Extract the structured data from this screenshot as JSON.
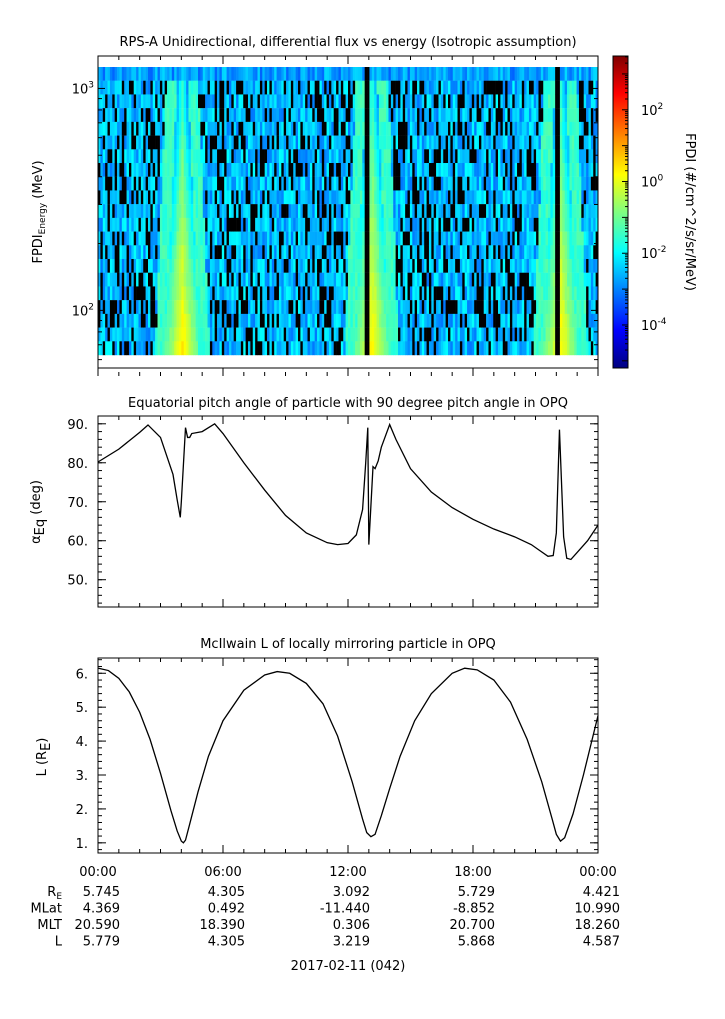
{
  "colors": {
    "colormap": [
      "#00007f",
      "#0000ff",
      "#0080ff",
      "#00ffff",
      "#80ff80",
      "#ffff00",
      "#ff8000",
      "#ff0000",
      "#7f0000"
    ],
    "curve": "#000000",
    "background": "#ffffff"
  },
  "chart_data": [
    {
      "type": "heatmap",
      "title": "RPS-A Unidirectional, differential flux vs energy (Isotropic assumption)",
      "ylabel_main": "FPDI",
      "ylabel_sub": "Energy",
      "ylabel_unit": " (MeV)",
      "yscale": "log",
      "ylim": [
        55,
        1400
      ],
      "yticks": [
        {
          "value": 100,
          "base": "10",
          "exp": "2"
        },
        {
          "value": 1000,
          "base": "10",
          "exp": "3"
        }
      ],
      "xlim_hours": [
        0,
        24
      ],
      "colorbar": {
        "label": "FPDI (#/cm^2/s/sr/MeV)",
        "scale": "log",
        "range_log": [
          -5.2,
          3.5
        ],
        "ticks": [
          {
            "value_log": -4,
            "base": "10",
            "exp": "-4"
          },
          {
            "value_log": -2,
            "base": "10",
            "exp": "-2"
          },
          {
            "value_log": 0,
            "base": "10",
            "exp": "0"
          },
          {
            "value_log": 2,
            "base": "10",
            "exp": "2"
          }
        ]
      },
      "belt_crossings_hours": [
        4.05,
        13.15,
        22.2
      ],
      "data_gaps_hours": [
        12.9,
        22.05
      ]
    },
    {
      "type": "line",
      "title": "Equatorial pitch angle of particle with 90 degree pitch angle in OPQ",
      "ylabel_main": "α",
      "ylabel_sub": "Eq",
      "ylabel_unit": " (deg)",
      "ylim": [
        43,
        92
      ],
      "yticks": [
        "50.",
        "60.",
        "70.",
        "80.",
        "90."
      ],
      "ytick_values": [
        50,
        60,
        70,
        80,
        90
      ],
      "x_hours": [
        0,
        1,
        2,
        2.4,
        3,
        3.6,
        3.8,
        3.95,
        4.0,
        4.2,
        4.3,
        4.4,
        4.5,
        5.0,
        5.6,
        6.0,
        7.0,
        8.0,
        9.0,
        10.0,
        11.0,
        11.5,
        12.0,
        12.4,
        12.7,
        12.85,
        12.95,
        13.0,
        13.2,
        13.3,
        13.45,
        13.6,
        14.0,
        14.3,
        15.0,
        16.0,
        17.0,
        18.0,
        19.0,
        20.0,
        20.8,
        21.2,
        21.6,
        21.85,
        22.0,
        22.15,
        22.35,
        22.5,
        22.7,
        23.0,
        23.5,
        24.0
      ],
      "values": [
        80.2,
        83.5,
        87.8,
        89.7,
        86.5,
        77.0,
        70.5,
        66.0,
        70.0,
        89.0,
        86.5,
        86.5,
        87.5,
        88.0,
        90.0,
        87.5,
        80.0,
        73.0,
        66.5,
        62.0,
        59.5,
        59.0,
        59.3,
        61.5,
        68.0,
        80.0,
        89.0,
        59.0,
        79.0,
        78.5,
        80.5,
        84.0,
        89.8,
        86.0,
        78.5,
        72.5,
        68.5,
        65.5,
        63.0,
        61.0,
        59.0,
        57.5,
        56.0,
        56.2,
        62.0,
        88.5,
        61.0,
        55.5,
        55.2,
        57.0,
        60.0,
        64.0
      ]
    },
    {
      "type": "line",
      "title": "McIlwain L of locally mirroring particle in OPQ",
      "ylabel_main": "L (R",
      "ylabel_sub": "E",
      "ylabel_unit": ")",
      "ylim": [
        0.7,
        6.45
      ],
      "yticks": [
        "1.",
        "2.",
        "3.",
        "4.",
        "5.",
        "6."
      ],
      "ytick_values": [
        1,
        2,
        3,
        4,
        5,
        6
      ],
      "x_hours": [
        0,
        0.5,
        1,
        1.5,
        2,
        2.5,
        3,
        3.5,
        3.8,
        4.0,
        4.1,
        4.2,
        4.4,
        4.8,
        5.3,
        6,
        7,
        8,
        8.6,
        9.2,
        10,
        10.8,
        11.5,
        12.2,
        12.7,
        12.9,
        13.1,
        13.3,
        13.6,
        14.0,
        14.5,
        15.2,
        16,
        17,
        17.6,
        18.2,
        19,
        19.8,
        20.6,
        21.3,
        21.8,
        22.0,
        22.2,
        22.4,
        22.8,
        23.3,
        24.0
      ],
      "values": [
        6.15,
        6.08,
        5.85,
        5.45,
        4.85,
        4.05,
        3.05,
        1.95,
        1.35,
        1.05,
        1.0,
        1.08,
        1.55,
        2.5,
        3.55,
        4.6,
        5.5,
        5.95,
        6.05,
        6.0,
        5.7,
        5.1,
        4.15,
        2.8,
        1.7,
        1.3,
        1.18,
        1.25,
        1.8,
        2.6,
        3.55,
        4.6,
        5.4,
        6.0,
        6.15,
        6.1,
        5.8,
        5.15,
        4.05,
        2.8,
        1.7,
        1.25,
        1.05,
        1.15,
        1.85,
        3.0,
        4.75
      ]
    }
  ],
  "time_axis": {
    "ticks": [
      "00:00",
      "06:00",
      "12:00",
      "18:00",
      "00:00"
    ],
    "date_label": "2017-02-11 (042)"
  },
  "ephemeris": {
    "rows": [
      {
        "label_main": "R",
        "label_sub": "E",
        "values": [
          "5.745",
          "4.305",
          "3.092",
          "5.729",
          "4.421"
        ]
      },
      {
        "label_main": "MLat",
        "label_sub": "",
        "values": [
          "4.369",
          "0.492",
          "-11.440",
          "-8.852",
          "10.990"
        ]
      },
      {
        "label_main": "MLT",
        "label_sub": "",
        "values": [
          "20.590",
          "18.390",
          "0.306",
          "20.700",
          "18.260"
        ]
      },
      {
        "label_main": "L",
        "label_sub": "",
        "values": [
          "5.779",
          "4.305",
          "3.219",
          "5.868",
          "4.587"
        ]
      }
    ]
  }
}
